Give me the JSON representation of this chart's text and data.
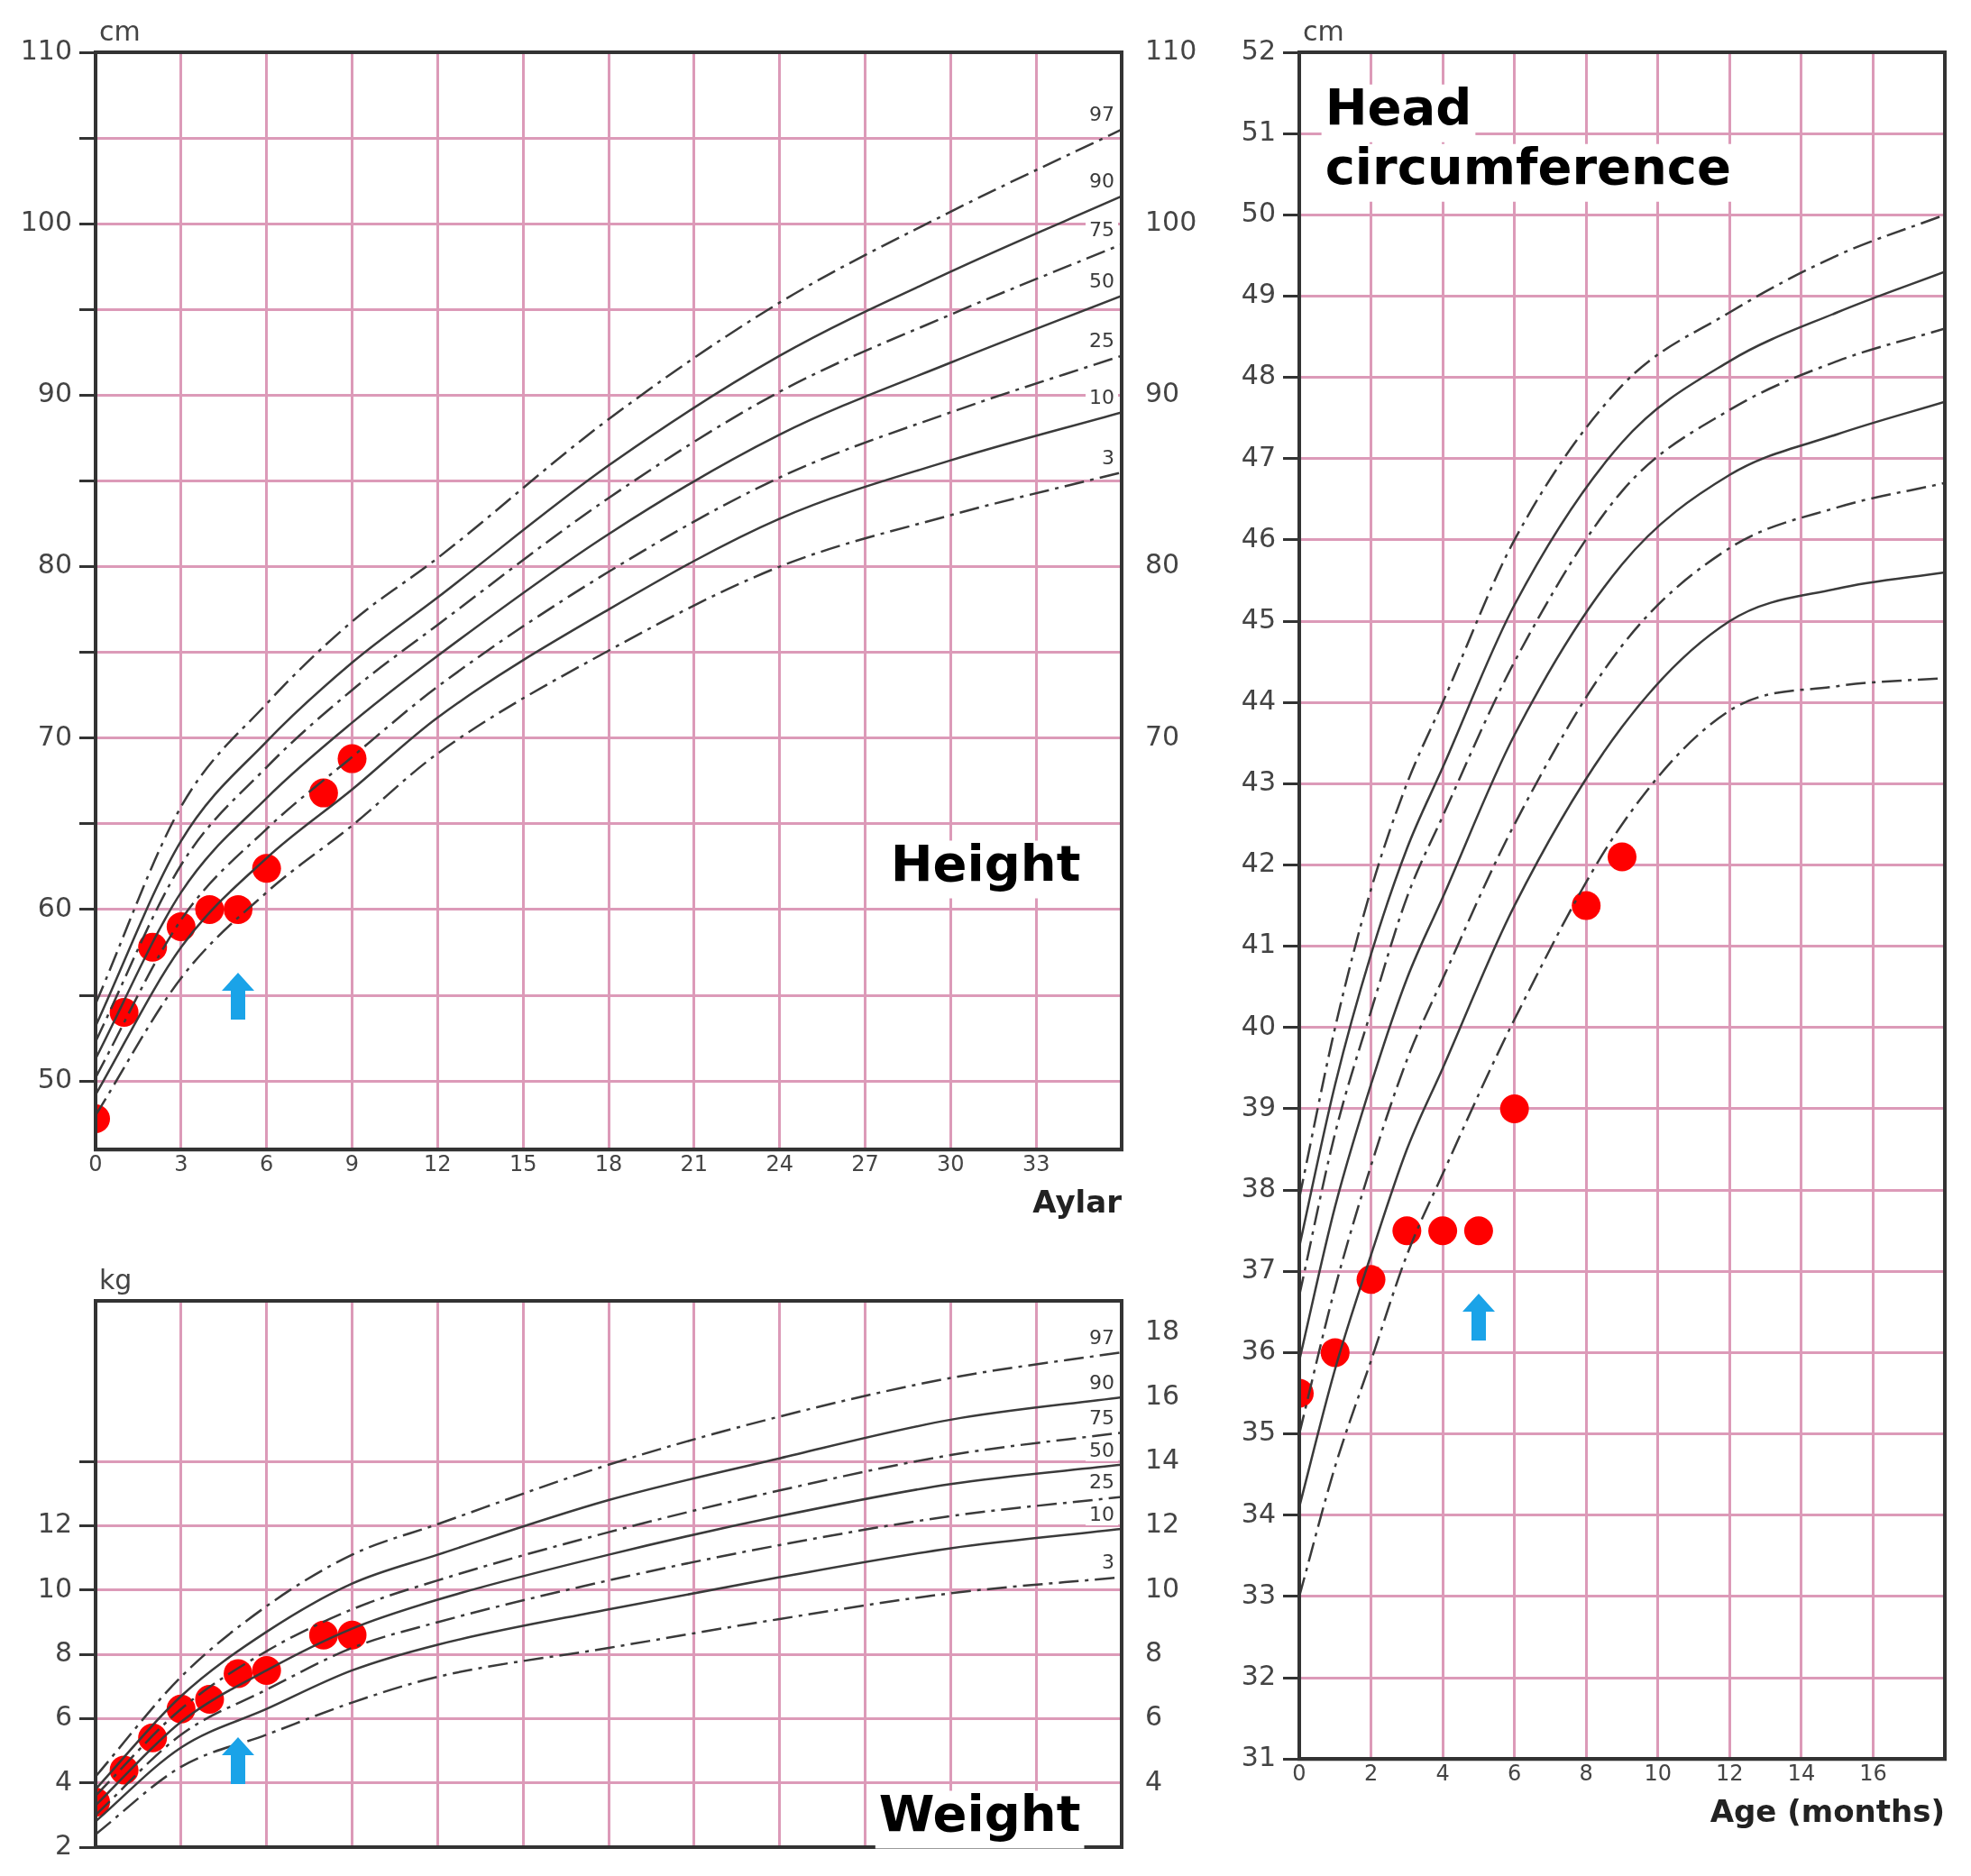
{
  "chart_data": [
    {
      "type": "line",
      "title": "Height",
      "xlabel": "Aylar",
      "ylabel": "cm",
      "xlim": [
        0,
        36
      ],
      "ylim": [
        46,
        110
      ],
      "y2lim": [
        46,
        110
      ],
      "xticks": [
        0,
        3,
        6,
        9,
        12,
        15,
        18,
        21,
        24,
        27,
        30,
        33
      ],
      "yticks": [
        50,
        {
          "value": 55,
          "label": null
        },
        60,
        {
          "value": 65,
          "label": null
        },
        70,
        {
          "value": 75,
          "label": null
        },
        80,
        {
          "value": 85,
          "label": null
        },
        90,
        {
          "value": 95,
          "label": null
        },
        100,
        {
          "value": 105,
          "label": null
        },
        110
      ],
      "y2ticks": [
        70,
        80,
        90,
        100,
        110
      ],
      "grid": true,
      "series": [
        {
          "name": "97",
          "color": "#3a3a3a",
          "line_style": "dashed",
          "x": [
            0,
            3,
            6,
            9,
            12,
            18,
            24,
            30,
            36
          ],
          "values": [
            54.5,
            66,
            72,
            76.8,
            80.5,
            88.6,
            95.4,
            100.7,
            105.5
          ]
        },
        {
          "name": "90",
          "color": "#3a3a3a",
          "line_style": "solid",
          "x": [
            0,
            3,
            6,
            9,
            12,
            18,
            24,
            30,
            36
          ],
          "values": [
            53.2,
            64,
            69.8,
            74.4,
            78.2,
            85.9,
            92.3,
            97.2,
            101.6
          ]
        },
        {
          "name": "75",
          "color": "#3a3a3a",
          "line_style": "dashed",
          "x": [
            0,
            3,
            6,
            9,
            12,
            18,
            24,
            30,
            36
          ],
          "values": [
            52.3,
            62.6,
            68.3,
            72.8,
            76.6,
            84,
            90.2,
            94.7,
            98.8
          ]
        },
        {
          "name": "50",
          "color": "#3a3a3a",
          "line_style": "solid",
          "x": [
            0,
            3,
            6,
            9,
            12,
            18,
            24,
            30,
            36
          ],
          "values": [
            51.3,
            61,
            66.5,
            70.9,
            74.8,
            81.9,
            87.7,
            91.9,
            95.8
          ]
        },
        {
          "name": "25",
          "color": "#3a3a3a",
          "line_style": "dashed",
          "x": [
            0,
            3,
            6,
            9,
            12,
            18,
            24,
            30,
            36
          ],
          "values": [
            50.2,
            59.4,
            64.7,
            68.9,
            73,
            79.7,
            85.2,
            89,
            92.3
          ]
        },
        {
          "name": "10",
          "color": "#3a3a3a",
          "line_style": "solid",
          "x": [
            0,
            3,
            6,
            9,
            12,
            18,
            24,
            30,
            36
          ],
          "values": [
            49.2,
            57.8,
            63,
            67,
            71.2,
            77.5,
            82.8,
            86.2,
            89
          ]
        },
        {
          "name": "3",
          "color": "#3a3a3a",
          "line_style": "dashed",
          "x": [
            0,
            3,
            6,
            9,
            12,
            18,
            24,
            30,
            36
          ],
          "values": [
            48,
            56,
            61,
            64.9,
            69.1,
            75.1,
            80,
            83,
            85.5
          ]
        },
        {
          "type": "scatter",
          "color": "#ff0000",
          "marker": "circle",
          "x": [
            0,
            1,
            2,
            3,
            4,
            5,
            6,
            8,
            9
          ],
          "values": [
            47.8,
            54,
            57.8,
            59,
            60,
            60,
            62.4,
            66.8,
            68.8
          ]
        }
      ]
    },
    {
      "type": "line",
      "title": "Weight",
      "ylabel": "kg",
      "xlim": [
        0,
        36
      ],
      "ylim": [
        2,
        19
      ],
      "y2lim": [
        2,
        19
      ],
      "tick_labels": "y",
      "xticks": [
        0,
        3,
        6,
        9,
        12,
        15,
        18,
        21,
        24,
        27,
        30,
        33
      ],
      "yticks": [
        2,
        4,
        6,
        8,
        10,
        12,
        {
          "value": 14,
          "label": null
        }
      ],
      "y2ticks": [
        4,
        6,
        8,
        10,
        12,
        14,
        16,
        18
      ],
      "grid": true,
      "series": [
        {
          "name": "97",
          "color": "#3a3a3a",
          "line_style": "dashed",
          "x": [
            0,
            3,
            6,
            9,
            12,
            18,
            24,
            30,
            36
          ],
          "values": [
            4.2,
            7.3,
            9.5,
            11.1,
            12.05,
            13.9,
            15.4,
            16.6,
            17.4
          ]
        },
        {
          "name": "90",
          "color": "#3a3a3a",
          "line_style": "solid",
          "x": [
            0,
            3,
            6,
            9,
            12,
            18,
            24,
            30,
            36
          ],
          "values": [
            3.8,
            6.7,
            8.7,
            10.2,
            11.1,
            12.8,
            14.1,
            15.3,
            16
          ]
        },
        {
          "name": "75",
          "color": "#3a3a3a",
          "line_style": "dashed",
          "x": [
            0,
            3,
            6,
            9,
            12,
            18,
            24,
            30,
            36
          ],
          "values": [
            3.6,
            6.3,
            8.1,
            9.4,
            10.3,
            11.8,
            13.1,
            14.2,
            14.9
          ]
        },
        {
          "name": "50",
          "color": "#3a3a3a",
          "line_style": "solid",
          "x": [
            0,
            3,
            6,
            9,
            12,
            18,
            24,
            30,
            36
          ],
          "values": [
            3.3,
            5.9,
            7.5,
            8.8,
            9.7,
            11.1,
            12.3,
            13.3,
            13.9
          ]
        },
        {
          "name": "25",
          "color": "#3a3a3a",
          "line_style": "dashed",
          "x": [
            0,
            3,
            6,
            9,
            12,
            18,
            24,
            30,
            36
          ],
          "values": [
            3,
            5.5,
            6.9,
            8.2,
            9,
            10.3,
            11.4,
            12.3,
            12.9
          ]
        },
        {
          "name": "10",
          "color": "#3a3a3a",
          "line_style": "solid",
          "x": [
            0,
            3,
            6,
            9,
            12,
            18,
            24,
            30,
            36
          ],
          "values": [
            2.8,
            5.1,
            6.3,
            7.5,
            8.3,
            9.4,
            10.4,
            11.3,
            11.9
          ]
        },
        {
          "name": "3",
          "color": "#3a3a3a",
          "line_style": "dashed",
          "x": [
            0,
            3,
            6,
            9,
            12,
            18,
            24,
            30,
            36
          ],
          "values": [
            2.4,
            4.5,
            5.5,
            6.5,
            7.3,
            8.2,
            9.1,
            9.9,
            10.4
          ]
        },
        {
          "type": "scatter",
          "color": "#ff0000",
          "marker": "circle",
          "x": [
            0,
            1,
            2,
            3,
            4,
            5,
            6,
            8,
            9
          ],
          "values": [
            3.4,
            4.4,
            5.4,
            6.3,
            6.6,
            7.4,
            7.5,
            8.6,
            8.6
          ]
        }
      ]
    },
    {
      "type": "line",
      "title": "Head circumference",
      "xlabel": "Age (months)",
      "ylabel": "cm",
      "xlim": [
        0,
        18
      ],
      "ylim": [
        31,
        52
      ],
      "xticks": [
        0,
        2,
        4,
        6,
        8,
        10,
        12,
        14,
        16
      ],
      "yticks": [
        31,
        32,
        33,
        34,
        35,
        36,
        37,
        38,
        39,
        40,
        41,
        42,
        43,
        44,
        45,
        46,
        47,
        48,
        49,
        50,
        51,
        52
      ],
      "grid": true,
      "series": [
        {
          "color": "#3a3a3a",
          "line_style": "dashed",
          "x": [
            0,
            1,
            2,
            3,
            4,
            6,
            9,
            12,
            15,
            18
          ],
          "values": [
            37.9,
            40,
            41.7,
            43,
            44,
            46,
            47.9,
            48.8,
            49.5,
            50
          ]
        },
        {
          "color": "#3a3a3a",
          "line_style": "solid",
          "x": [
            0,
            1,
            2,
            3,
            4,
            6,
            9,
            12,
            15,
            18
          ],
          "values": [
            37.3,
            39.3,
            40.9,
            42.2,
            43.2,
            45.2,
            47.2,
            48.2,
            48.8,
            49.3
          ]
        },
        {
          "color": "#3a3a3a",
          "line_style": "dashed",
          "x": [
            0,
            1,
            2,
            3,
            4,
            6,
            9,
            12,
            15,
            18
          ],
          "values": [
            36.7,
            38.7,
            40.2,
            41.6,
            42.6,
            44.5,
            46.6,
            47.6,
            48.2,
            48.6
          ]
        },
        {
          "color": "#3a3a3a",
          "line_style": "solid",
          "x": [
            0,
            1,
            2,
            3,
            4,
            6,
            9,
            12,
            15,
            18
          ],
          "values": [
            35.9,
            37.8,
            39.3,
            40.6,
            41.6,
            43.6,
            45.7,
            46.8,
            47.3,
            47.7
          ]
        },
        {
          "color": "#3a3a3a",
          "line_style": "dashed",
          "x": [
            0,
            1,
            2,
            3,
            4,
            6,
            9,
            12,
            15,
            18
          ],
          "values": [
            35,
            36.8,
            38.3,
            39.6,
            40.6,
            42.5,
            44.7,
            45.9,
            46.4,
            46.7
          ]
        },
        {
          "color": "#3a3a3a",
          "line_style": "solid",
          "x": [
            0,
            1,
            2,
            3,
            4,
            6,
            9,
            12,
            15,
            18
          ],
          "values": [
            34.1,
            35.8,
            37.2,
            38.5,
            39.5,
            41.5,
            43.7,
            45,
            45.4,
            45.6
          ]
        },
        {
          "color": "#3a3a3a",
          "line_style": "dashed",
          "x": [
            0,
            1,
            2,
            3,
            4,
            6,
            9,
            12,
            15,
            18
          ],
          "values": [
            33,
            34.6,
            35.9,
            37.2,
            38.2,
            40.1,
            42.5,
            43.9,
            44.2,
            44.3
          ]
        },
        {
          "type": "scatter",
          "color": "#ff0000",
          "marker": "circle",
          "x": [
            0,
            1,
            2,
            3,
            4,
            5,
            6,
            8,
            9
          ],
          "values": [
            35.5,
            36,
            36.9,
            37.5,
            37.5,
            37.5,
            39,
            41.5,
            42.1
          ]
        }
      ]
    }
  ]
}
